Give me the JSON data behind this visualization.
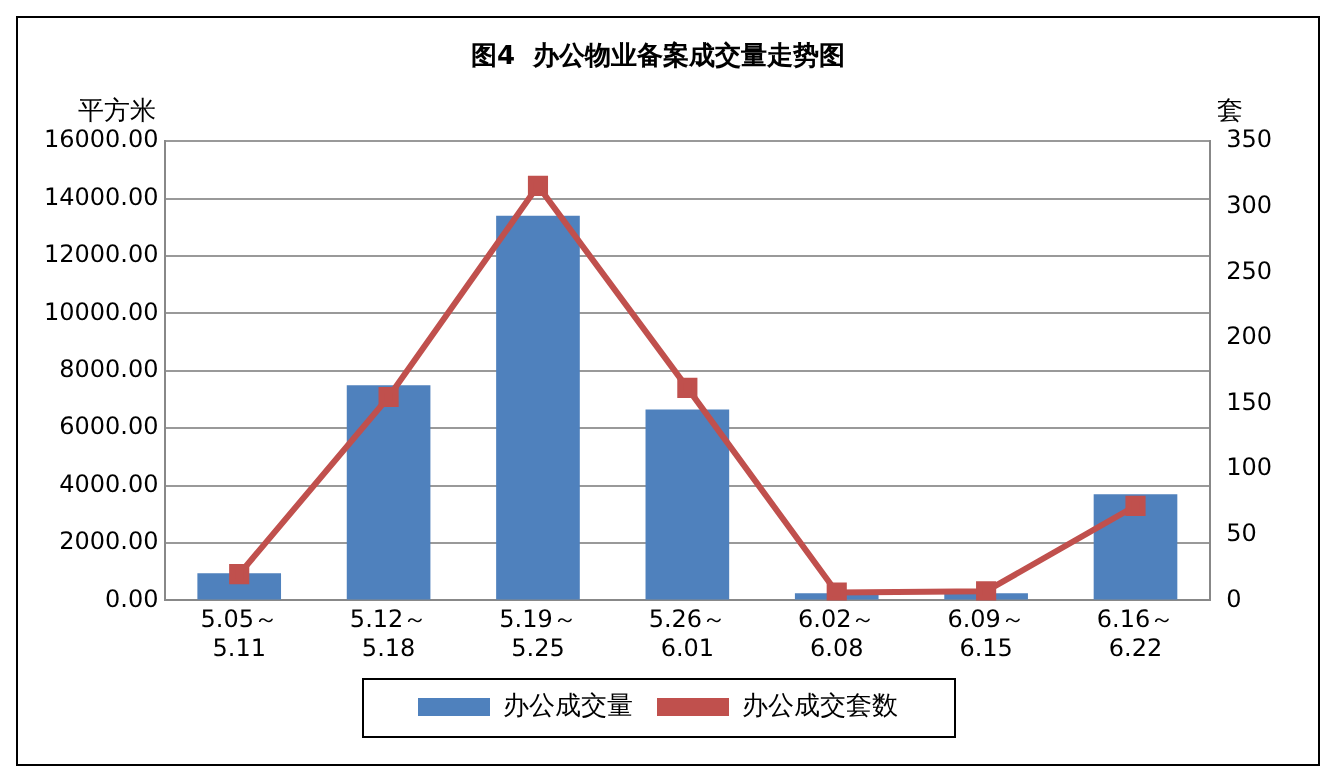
{
  "chart_data": {
    "type": "bar",
    "title": "图4  办公物业备案成交量走势图",
    "ylabel": "平方米",
    "y2label": "套",
    "categories": [
      "5.05～5.11",
      "5.12～5.18",
      "5.19～5.25",
      "5.26～6.01",
      "6.02～6.08",
      "6.09～6.15",
      "6.16～6.22"
    ],
    "series": [
      {
        "name": "办公成交量",
        "color": "#4f81bd",
        "values": [
          950,
          7500,
          13400,
          6650,
          250,
          250,
          3700
        ]
      },
      {
        "name": "办公成交套数",
        "type": "line",
        "axis": "y2",
        "color": "#c0504d",
        "marker": "square",
        "values": [
          20,
          155,
          316,
          162,
          6,
          7,
          72
        ]
      }
    ],
    "ylim": [
      0,
      16000
    ],
    "yticks": [
      {
        "value": 0,
        "label": "0.00"
      },
      {
        "value": 2000,
        "label": "2000.00"
      },
      {
        "value": 4000,
        "label": "4000.00"
      },
      {
        "value": 6000,
        "label": "6000.00"
      },
      {
        "value": 8000,
        "label": "8000.00"
      },
      {
        "value": 10000,
        "label": "10000.00"
      },
      {
        "value": 12000,
        "label": "12000.00"
      },
      {
        "value": 14000,
        "label": "14000.00"
      },
      {
        "value": 16000,
        "label": "16000.00"
      }
    ],
    "y2lim": [
      0,
      350
    ],
    "y2ticks": [
      0,
      50,
      100,
      150,
      200,
      250,
      300,
      350
    ],
    "grid": "y",
    "legend": "bottom"
  }
}
